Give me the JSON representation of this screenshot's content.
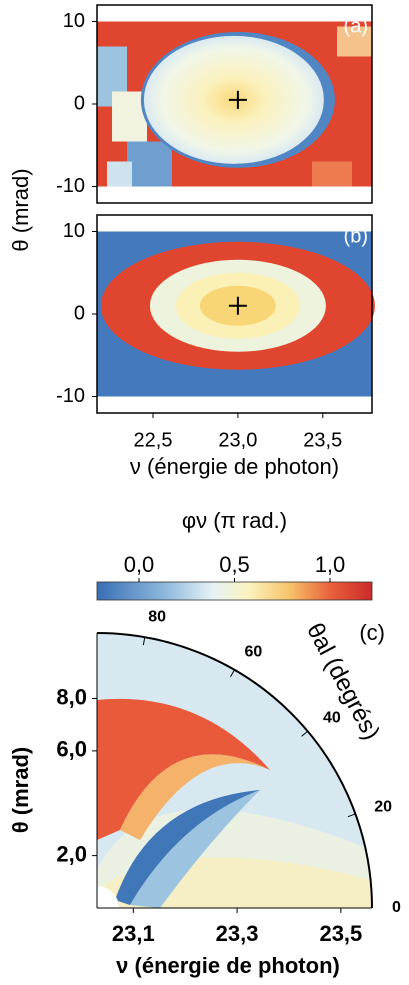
{
  "chart_data": [
    {
      "type": "heatmap",
      "label": "(a)",
      "xlim": [
        22.17,
        23.79
      ],
      "ylim": [
        -12,
        12
      ],
      "yticks": [
        -10,
        0,
        10
      ],
      "marker": [
        23.0,
        0.5
      ]
    },
    {
      "type": "heatmap",
      "label": "(b)",
      "xlim": [
        22.17,
        23.79
      ],
      "ylim": [
        -12,
        12
      ],
      "yticks": [
        -10,
        0,
        10
      ],
      "marker": [
        23.0,
        1.0
      ],
      "xticks": [
        {
          "value": 22.5,
          "label": "22,5"
        },
        {
          "value": 23.0,
          "label": "23,0"
        },
        {
          "value": 23.5,
          "label": "23,5"
        }
      ],
      "xlabel": "ν (énergie de photon)",
      "ylabel": "θ (mrad)"
    },
    {
      "type": "colorbar",
      "title": "φν (π rad.)",
      "clim": [
        -0.22,
        1.22
      ],
      "ticks": [
        {
          "value": 0,
          "label": "0,0"
        },
        {
          "value": 0.5,
          "label": "0,5"
        },
        {
          "value": 1,
          "label": "1,0"
        }
      ]
    },
    {
      "type": "polar",
      "label": "(c)",
      "xlim": [
        23.03,
        23.56
      ],
      "ylim": [
        0,
        10.5
      ],
      "xticks": [
        {
          "value": 23.1,
          "label": "23,1"
        },
        {
          "value": 23.3,
          "label": "23,3"
        },
        {
          "value": 23.5,
          "label": "23,5"
        }
      ],
      "yticks": [
        {
          "value": 2,
          "label": "2,0"
        },
        {
          "value": 6,
          "label": "6,0"
        },
        {
          "value": 8,
          "label": "8,0"
        }
      ],
      "angle_ticks": [
        0,
        20,
        40,
        60,
        80
      ],
      "angle_label": "θal (degrés)",
      "xlabel": "ν (énergie de photon)",
      "ylabel": "θ (mrad)"
    }
  ]
}
